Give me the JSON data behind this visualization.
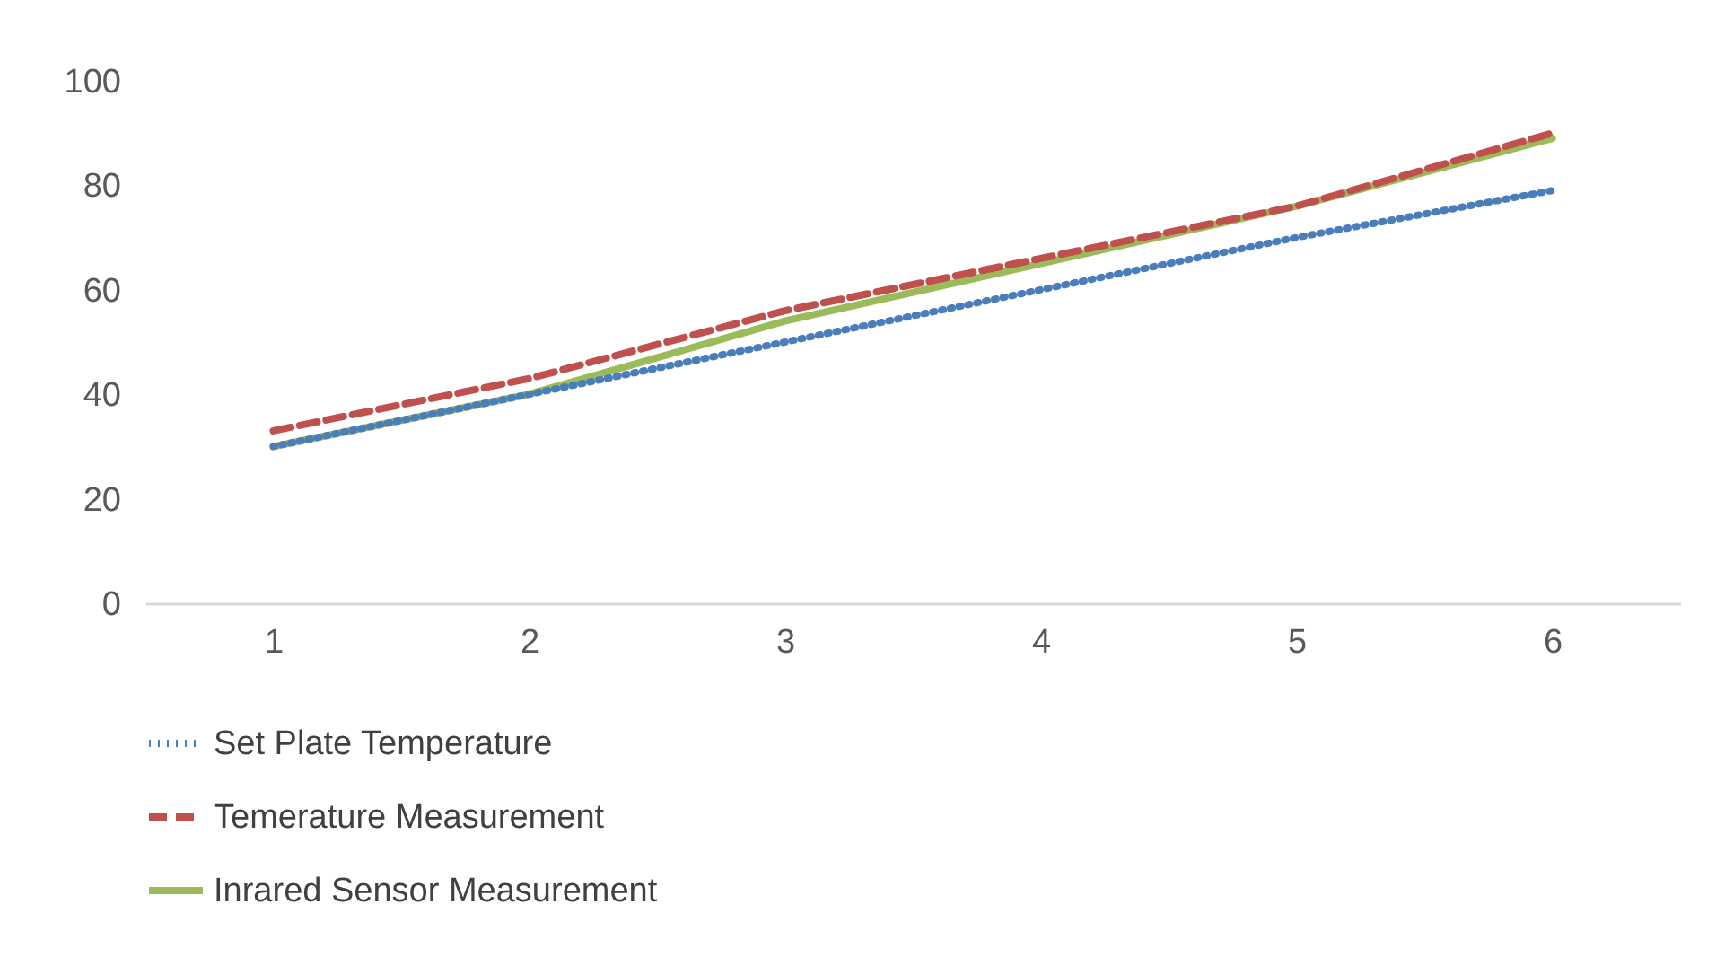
{
  "chart_data": {
    "type": "line",
    "categories": [
      "1",
      "2",
      "3",
      "4",
      "5",
      "6"
    ],
    "ylim": [
      0,
      100
    ],
    "yticks": [
      0,
      20,
      40,
      60,
      80,
      100
    ],
    "grid": false,
    "legend": "bottom",
    "series": [
      {
        "name": "Set Plate Temperature",
        "color": "#4a7ebb",
        "line_style": "dotted",
        "values": [
          30,
          40,
          50,
          60,
          70,
          79
        ]
      },
      {
        "name": "Temerature Measurement",
        "color": "#c0504d",
        "line_style": "dashed",
        "values": [
          33,
          43,
          56,
          66,
          76,
          90
        ]
      },
      {
        "name": "Inrared Sensor Measurement",
        "color": "#9bbb59",
        "line_style": "solid",
        "values": [
          30,
          40,
          54,
          65,
          76,
          89
        ]
      }
    ]
  }
}
